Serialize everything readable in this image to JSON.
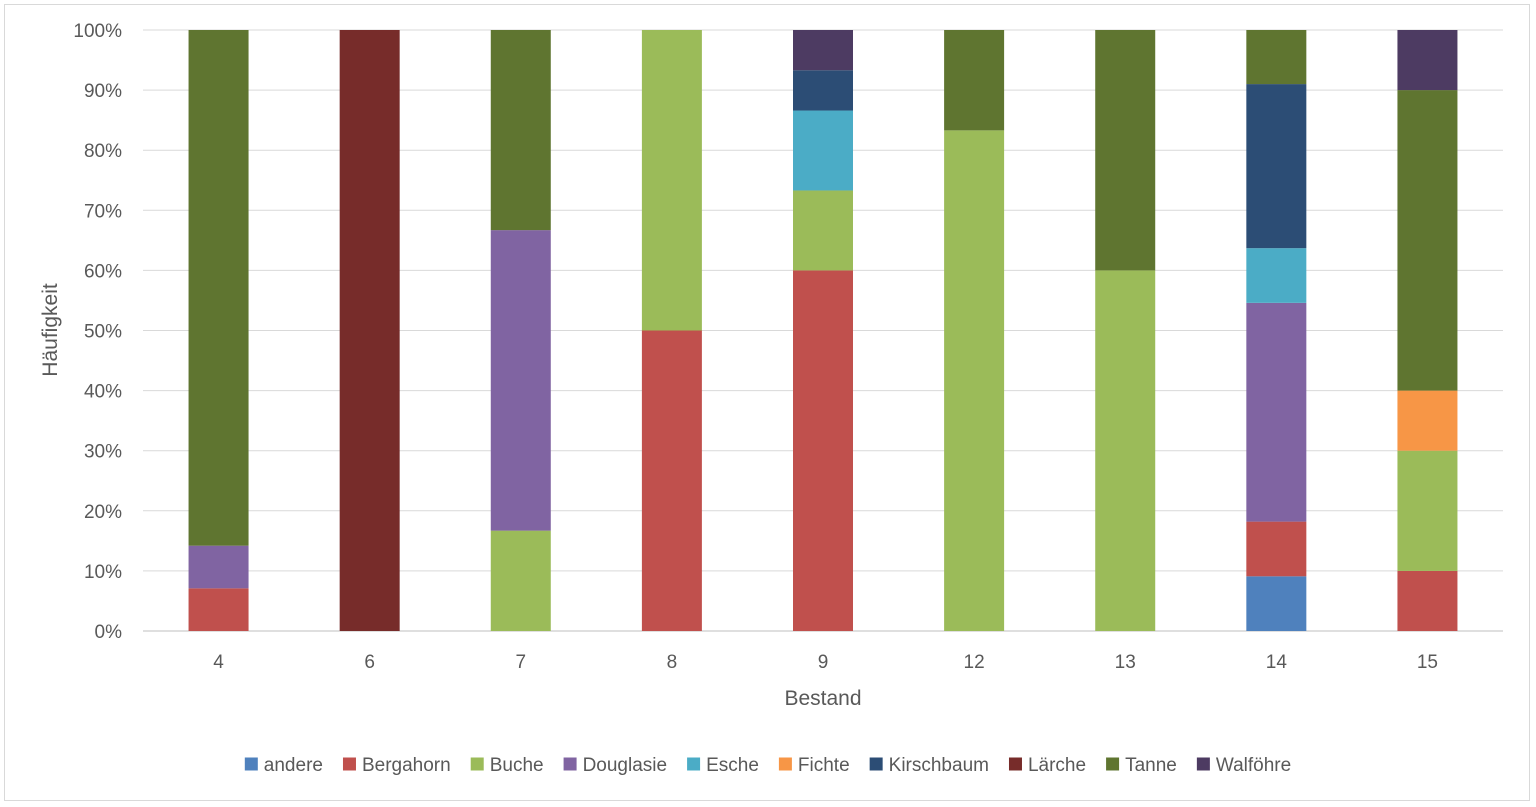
{
  "chart_data": {
    "type": "bar",
    "stacked": true,
    "normalized": true,
    "xlabel": "Bestand",
    "ylabel": "Häufigkeit",
    "yticks": [
      "0%",
      "10%",
      "20%",
      "30%",
      "40%",
      "50%",
      "60%",
      "70%",
      "80%",
      "90%",
      "100%"
    ],
    "ylim": [
      0,
      100
    ],
    "grid": true,
    "legend_position": "bottom",
    "categories": [
      "4",
      "6",
      "7",
      "8",
      "9",
      "12",
      "13",
      "14",
      "15"
    ],
    "series": [
      {
        "name": "andere",
        "color": "#4f81bd",
        "values": [
          0,
          0,
          0,
          0,
          0,
          0,
          0,
          9.1,
          0
        ]
      },
      {
        "name": "Bergahorn",
        "color": "#c0504d",
        "values": [
          7.1,
          0,
          0,
          50,
          60,
          0,
          0,
          9.1,
          10
        ]
      },
      {
        "name": "Buche",
        "color": "#9bbb59",
        "values": [
          0,
          0,
          16.7,
          50,
          13.3,
          83.3,
          60,
          0,
          20
        ]
      },
      {
        "name": "Douglasie",
        "color": "#8064a2",
        "values": [
          7.1,
          0,
          50,
          0,
          0,
          0,
          0,
          36.4,
          0
        ]
      },
      {
        "name": "Esche",
        "color": "#4bacc6",
        "values": [
          0,
          0,
          0,
          0,
          13.3,
          0,
          0,
          9.1,
          0
        ]
      },
      {
        "name": "Fichte",
        "color": "#f79646",
        "values": [
          0,
          0,
          0,
          0,
          0,
          0,
          0,
          0,
          10
        ]
      },
      {
        "name": "Kirschbaum",
        "color": "#2c4d75",
        "values": [
          0,
          0,
          0,
          0,
          6.7,
          0,
          0,
          27.3,
          0
        ]
      },
      {
        "name": "Lärche",
        "color": "#772c2a",
        "values": [
          0,
          100,
          0,
          0,
          0,
          0,
          0,
          0,
          0
        ]
      },
      {
        "name": "Tanne",
        "color": "#5f7530",
        "values": [
          85.8,
          0,
          33.3,
          0,
          0,
          16.7,
          40,
          9.0,
          50
        ]
      },
      {
        "name": "Walföhre",
        "color": "#4d3b62",
        "values": [
          0,
          0,
          0,
          0,
          6.7,
          0,
          0,
          0,
          10
        ]
      }
    ]
  }
}
